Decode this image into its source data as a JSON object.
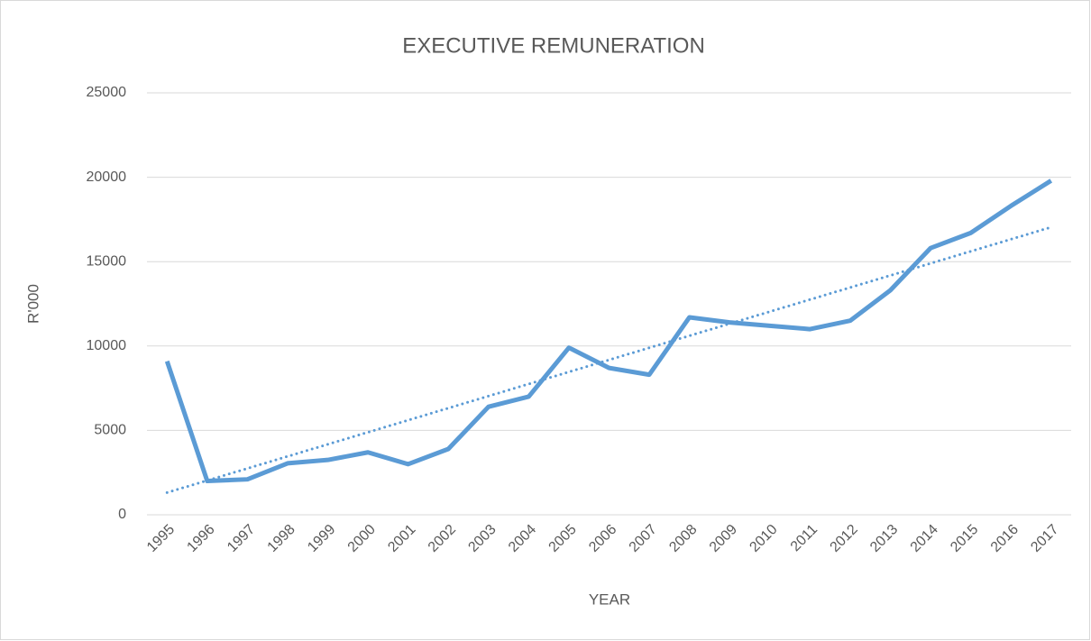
{
  "chart_data": {
    "type": "line",
    "title": "EXECUTIVE REMUNERATION",
    "x_label": "YEAR",
    "y_label": "R'000",
    "categories": [
      "1995",
      "1996",
      "1997",
      "1998",
      "1999",
      "2000",
      "2001",
      "2002",
      "2003",
      "2004",
      "2005",
      "2006",
      "2007",
      "2008",
      "2009",
      "2010",
      "2011",
      "2012",
      "2013",
      "2014",
      "2015",
      "2016",
      "2017"
    ],
    "series": [
      {
        "color": "#5b9bd5",
        "values": [
          9100,
          2000,
          2100,
          3050,
          3250,
          3700,
          3000,
          3900,
          6400,
          7000,
          9900,
          8700,
          8300,
          11700,
          11400,
          11200,
          11000,
          11500,
          13300,
          15800,
          16700,
          18300,
          19800
        ]
      }
    ],
    "trendline": "linear",
    "ylim": [
      0,
      25000
    ],
    "yticks": [
      0,
      5000,
      10000,
      15000,
      20000,
      25000
    ],
    "grid": true
  }
}
